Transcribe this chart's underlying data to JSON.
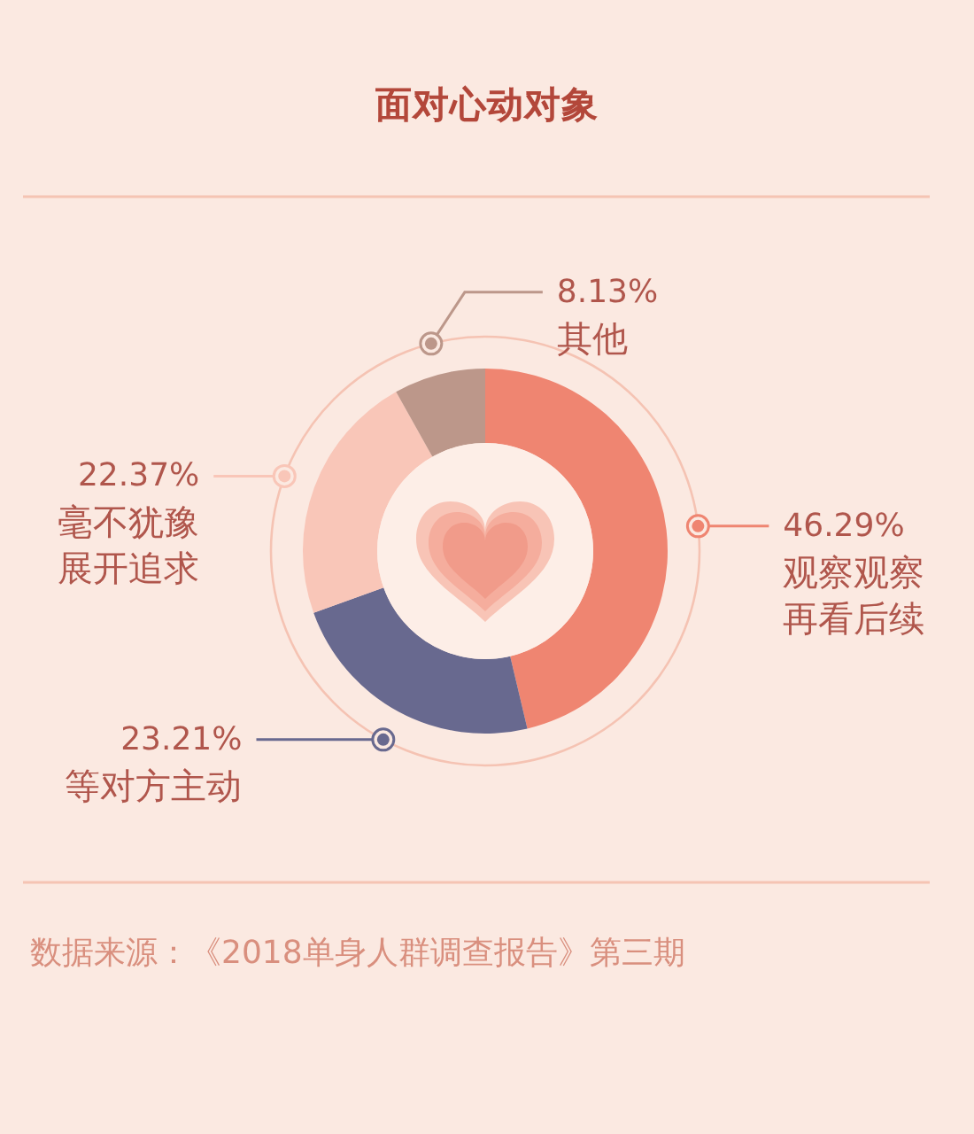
{
  "chart_data": {
    "type": "donut",
    "title": "面对心动对象",
    "categories": [
      "观察观察再看后续",
      "等对方主动",
      "毫不犹豫展开追求",
      "其他"
    ],
    "values": [
      46.29,
      23.21,
      22.37,
      8.13
    ],
    "colors": [
      "#ef8571",
      "#68698f",
      "#f9c6b8",
      "#bc978a"
    ],
    "value_labels": [
      "46.29%",
      "23.21%",
      "22.37%",
      "8.13%"
    ],
    "annotations": [
      "数据来源：《2018单身人群调查报告》第三期"
    ]
  }
}
